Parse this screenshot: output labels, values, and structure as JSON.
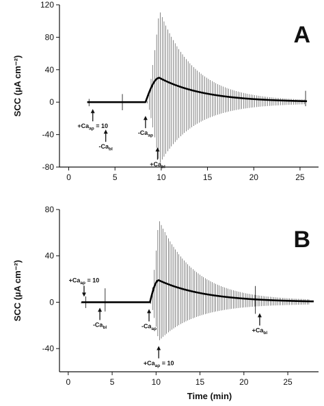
{
  "chart_data": [
    {
      "type": "line",
      "panel_label": "A",
      "ylabel": "SCC (µA cm⁻²)",
      "xlabel": "",
      "xlim": [
        -1,
        27
      ],
      "ylim": [
        -80,
        120
      ],
      "x_ticks": [
        "0",
        "5",
        "10",
        "15",
        "20",
        "25"
      ],
      "y_ticks": [
        "-80",
        "-40",
        "0",
        "40",
        "80",
        "120"
      ],
      "grid": false,
      "baseline": {
        "x_start": 2.0,
        "x_end": 25.8,
        "value": 0
      },
      "response": {
        "onset": 8.3,
        "peak_x": 9.8,
        "peak_mean": 30,
        "end_x": 25.5,
        "osc_start": 8.5,
        "osc_interval": 0.2,
        "osc_max_up": 112,
        "osc_max_down": 75
      },
      "spikes": [
        {
          "x": 2.2,
          "up": 4,
          "down": 5
        },
        {
          "x": 5.8,
          "up": 10,
          "down": 10
        },
        {
          "x": 25.6,
          "up": 14,
          "down": 5
        }
      ],
      "annotations": [
        {
          "name": "plus-ca-ap-10",
          "prefix": "+Ca",
          "sub": "ap",
          "suffix": " = 10",
          "x": 2.6,
          "direction": "up"
        },
        {
          "name": "minus-ca-bl",
          "prefix": "-Ca",
          "sub": "bl",
          "suffix": "",
          "x": 4.0,
          "direction": "up"
        },
        {
          "name": "minus-ca-ap",
          "prefix": "-Ca",
          "sub": "ap",
          "suffix": "",
          "x": 8.3,
          "direction": "up"
        },
        {
          "name": "plus-ca-bl",
          "prefix": "+Ca",
          "sub": "bl",
          "suffix": "",
          "x": 9.6,
          "direction": "up"
        }
      ]
    },
    {
      "type": "line",
      "panel_label": "B",
      "ylabel": "SCC (µA cm⁻²)",
      "xlabel": "Time (min)",
      "xlim": [
        -1,
        28.5
      ],
      "ylim": [
        -60,
        80
      ],
      "x_ticks": [
        "0",
        "5",
        "10",
        "15",
        "20",
        "25"
      ],
      "y_ticks": [
        "-40",
        "0",
        "40",
        "80"
      ],
      "grid": false,
      "baseline": {
        "x_start": 1.5,
        "x_end": 28.0,
        "value": 0
      },
      "response": {
        "onset": 9.3,
        "peak_x": 10.3,
        "peak_mean": 19,
        "end_x": 27.5,
        "osc_start": 9.4,
        "osc_interval": 0.2,
        "osc_max_up": 70,
        "osc_max_down": 32
      },
      "spikes": [
        {
          "x": 2.0,
          "up": 5,
          "down": 5
        },
        {
          "x": 4.2,
          "up": 12,
          "down": 8
        },
        {
          "x": 21.3,
          "up": 14,
          "down": 10
        }
      ],
      "annotations": [
        {
          "name": "plus-ca-ap-10-top",
          "prefix": "+Ca",
          "sub": "ap",
          "suffix": " = 10",
          "x": 1.8,
          "direction": "down"
        },
        {
          "name": "minus-ca-bl",
          "prefix": "-Ca",
          "sub": "bl",
          "suffix": "",
          "x": 3.6,
          "direction": "up"
        },
        {
          "name": "minus-ca-ap",
          "prefix": "-Ca",
          "sub": "ap",
          "suffix": "",
          "x": 9.2,
          "direction": "up"
        },
        {
          "name": "plus-ca-ap-10-bottom",
          "prefix": "+Ca",
          "sub": "ap",
          "suffix": " = 10",
          "x": 10.3,
          "direction": "up"
        },
        {
          "name": "plus-ca-bl",
          "prefix": "+Ca",
          "sub": "bl",
          "suffix": "",
          "x": 21.8,
          "direction": "up"
        }
      ]
    }
  ]
}
